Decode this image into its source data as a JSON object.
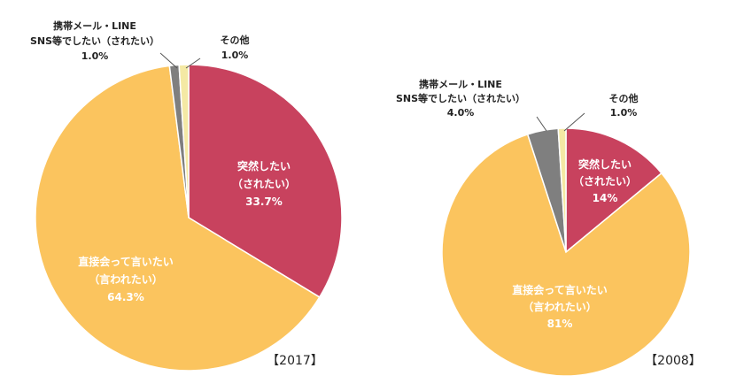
{
  "chart_data": [
    {
      "type": "pie",
      "title": "【2017】",
      "slices": [
        {
          "label": [
            "突然したい",
            "（されたい）"
          ],
          "value_text": "33.7%",
          "value": 33.7,
          "color": "#c8425e"
        },
        {
          "label": [
            "直接会って言いたい",
            "（言われたい）"
          ],
          "value_text": "64.3%",
          "value": 64.3,
          "color": "#fbc45e"
        },
        {
          "label": [
            "携帯メール・LINE",
            "SNS等でしたい（されたい）"
          ],
          "value_text": "1.0%",
          "value": 1.0,
          "color": "#7f7f7f"
        },
        {
          "label": [
            "その他"
          ],
          "value_text": "1.0%",
          "value": 1.0,
          "color": "#f4e9a4"
        }
      ]
    },
    {
      "type": "pie",
      "title": "【2008】",
      "slices": [
        {
          "label": [
            "突然したい",
            "（されたい）"
          ],
          "value_text": "14%",
          "value": 14,
          "color": "#c8425e"
        },
        {
          "label": [
            "直接会って言いたい",
            "（言われたい）"
          ],
          "value_text": "81%",
          "value": 81,
          "color": "#fbc45e"
        },
        {
          "label": [
            "携帯メール・LINE",
            "SNS等でしたい（されたい）"
          ],
          "value_text": "4.0%",
          "value": 4.0,
          "color": "#7f7f7f"
        },
        {
          "label": [
            "その他"
          ],
          "value_text": "1.0%",
          "value": 1.0,
          "color": "#f4e9a4"
        }
      ]
    }
  ]
}
